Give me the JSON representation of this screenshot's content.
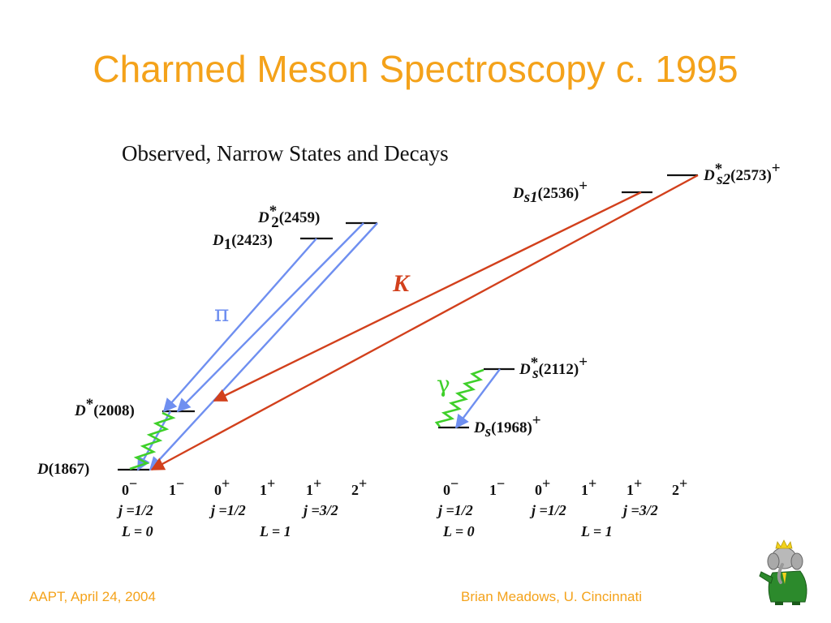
{
  "title": "Charmed Meson Spectroscopy c. 1995",
  "subtitle": "Observed, Narrow States and Decays",
  "footer": {
    "left": "AAPT, April 24, 2004",
    "right": "Brian Meadows, U. Cincinnati"
  },
  "colors": {
    "title": "#f4a21a",
    "pion": "#6f8ff0",
    "kaon": "#d2401c",
    "photon": "#3fd02a"
  },
  "transition_labels": {
    "pion": "π",
    "kaon": "K",
    "photon": "γ"
  },
  "states": {
    "D1867": {
      "sym": "D",
      "mass": "(1867)"
    },
    "Dstar": {
      "sym": "D",
      "sup": "*",
      "mass": "(2008)"
    },
    "D1": {
      "sym": "D",
      "sub": "1",
      "mass": "(2423)"
    },
    "D2star": {
      "sym": "D",
      "sup": "*",
      "sub": "2",
      "mass": "(2459)"
    },
    "Ds": {
      "sym": "D",
      "sub": "s",
      "mass": "(1968)",
      "charge": "+"
    },
    "Dsstar": {
      "sym": "D",
      "sup": "*",
      "sub": "s",
      "mass": "(2112)",
      "charge": "+"
    },
    "Ds1": {
      "sym": "D",
      "sub": "s1",
      "mass": "(2536)",
      "charge": "+"
    },
    "Ds2star": {
      "sym": "D",
      "sup": "*",
      "sub": "s2",
      "mass": "(2573)",
      "charge": "+"
    }
  },
  "quantum_numbers": {
    "jp": [
      {
        "base": "0",
        "sup": "−"
      },
      {
        "base": "1",
        "sup": "−"
      },
      {
        "base": "0",
        "sup": "+"
      },
      {
        "base": "1",
        "sup": "+"
      },
      {
        "base": "1",
        "sup": "+"
      },
      {
        "base": "2",
        "sup": "+"
      }
    ],
    "j": [
      "j =1/2",
      "j =1/2",
      "j =3/2"
    ],
    "L": [
      "L = 0",
      "L = 1"
    ]
  },
  "logo": "babar-elephant-icon"
}
